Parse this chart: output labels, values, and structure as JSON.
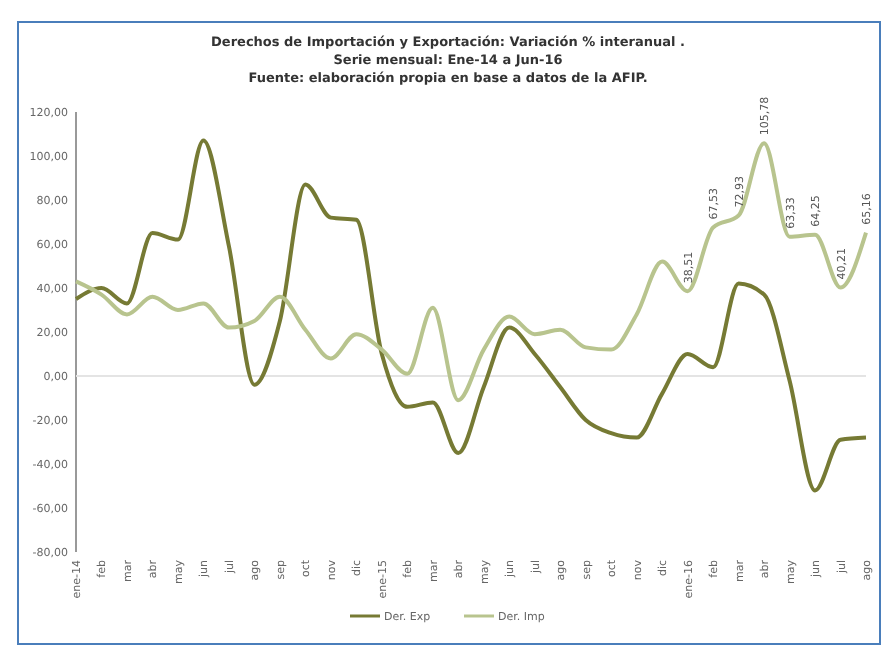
{
  "chart_data": {
    "type": "line",
    "title": "Derechos de Importación y Exportación: Variación % interanual .",
    "subtitle": "Serie mensual: Ene-14 a Jun-16\nFuente: elaboración propia en base a datos de la AFIP.",
    "categories": [
      "ene-14",
      "feb",
      "mar",
      "abr",
      "may",
      "jun",
      "jul",
      "ago",
      "sep",
      "oct",
      "nov",
      "dic",
      "ene-15",
      "feb",
      "mar",
      "abr",
      "may",
      "jun",
      "jul",
      "ago",
      "sep",
      "oct",
      "nov",
      "dic",
      "ene-16",
      "feb",
      "mar",
      "abr",
      "may",
      "jun",
      "jul",
      "ago"
    ],
    "series": [
      {
        "name": "Der. Exp",
        "color": "#767a34",
        "values": [
          35,
          40,
          33,
          65,
          62,
          107,
          59,
          -4,
          25,
          87,
          72,
          71,
          10,
          -14,
          -12,
          -35,
          -5,
          22,
          10,
          -5,
          -20,
          -26,
          -28,
          -8,
          10,
          4,
          42,
          37,
          -2,
          -52,
          -29,
          -28
        ]
      },
      {
        "name": "Der. Imp",
        "color": "#b8c48e",
        "values": [
          43,
          37,
          28,
          36,
          30,
          33,
          22,
          25,
          36,
          21,
          8,
          19,
          12,
          1,
          31,
          -11,
          12,
          27,
          19,
          21,
          13,
          12,
          28,
          52,
          38.51,
          67.53,
          72.93,
          105.78,
          63.33,
          64.25,
          40.21,
          65.16
        ],
        "value_labels": [
          null,
          null,
          null,
          null,
          null,
          null,
          null,
          null,
          null,
          null,
          null,
          null,
          null,
          null,
          null,
          null,
          null,
          null,
          null,
          null,
          null,
          null,
          null,
          null,
          "38,51",
          "67,53",
          "72,93",
          "105,78",
          "63,33",
          "64,25",
          "40,21",
          "65,16"
        ]
      }
    ],
    "ylim": [
      -80,
      120
    ],
    "yticks": [
      {
        "value": -80,
        "label": "-80,00"
      },
      {
        "value": -60,
        "label": "-60,00"
      },
      {
        "value": -40,
        "label": "-40,00"
      },
      {
        "value": -20,
        "label": "-20,00"
      },
      {
        "value": 0,
        "label": "0,00"
      },
      {
        "value": 20,
        "label": "20,00"
      },
      {
        "value": 40,
        "label": "40,00"
      },
      {
        "value": 60,
        "label": "60,00"
      },
      {
        "value": 80,
        "label": "80,00"
      },
      {
        "value": 100,
        "label": "100,00"
      },
      {
        "value": 120,
        "label": "120,00"
      }
    ],
    "ref_lines": [
      {
        "axis": "y",
        "value": 0,
        "color": "#e4e4e4"
      }
    ],
    "legend": "bottom",
    "marker": "none",
    "line_style": "solid"
  }
}
